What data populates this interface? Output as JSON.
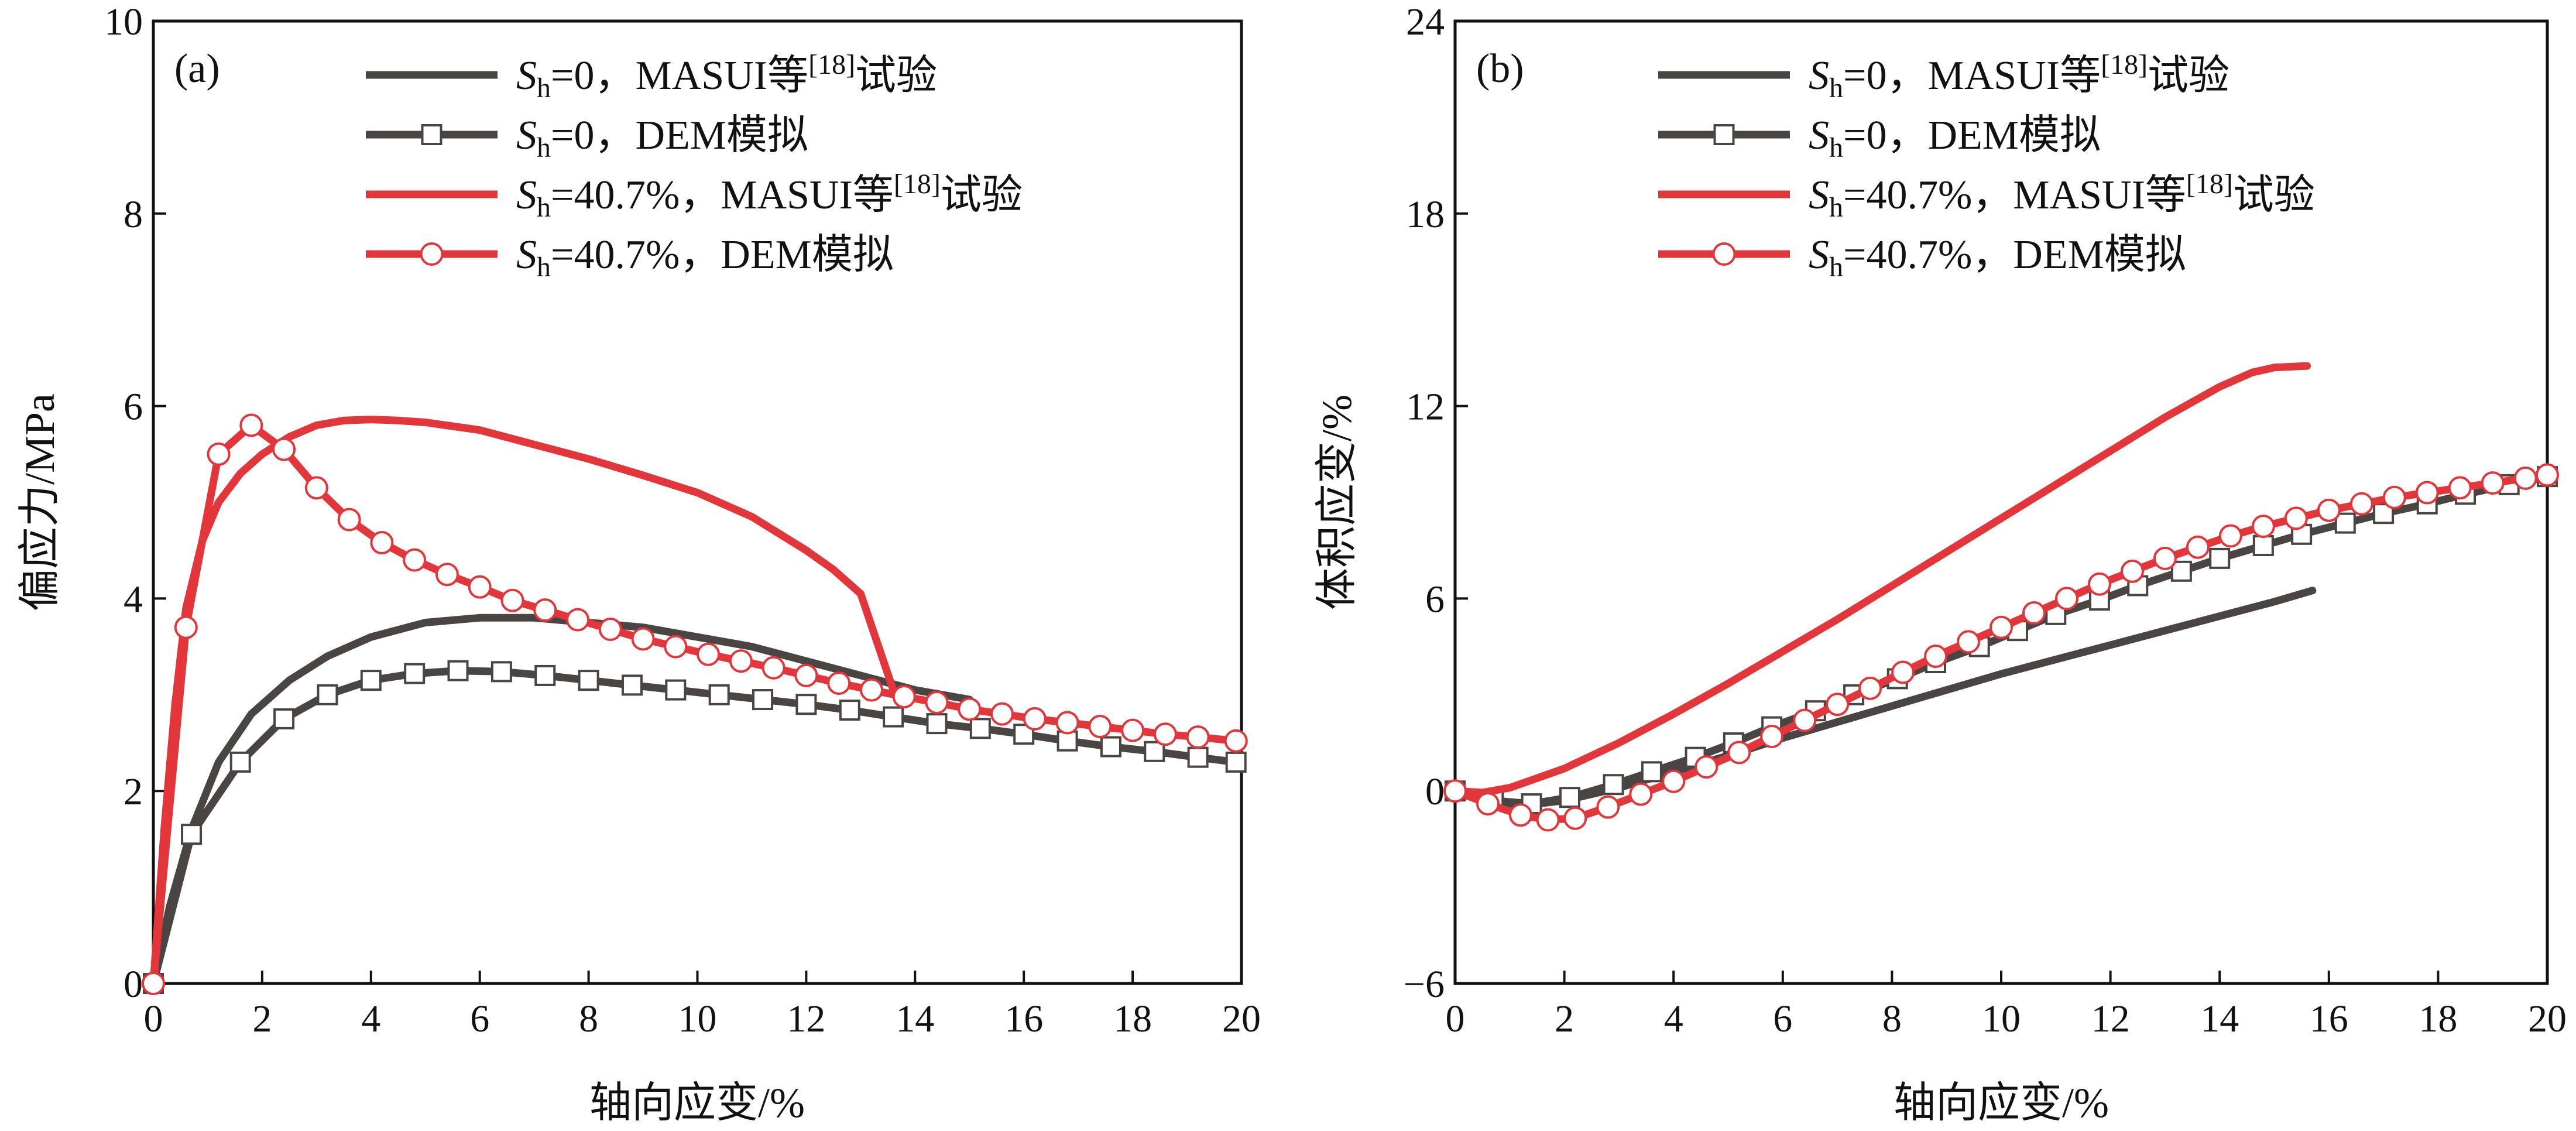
{
  "colors": {
    "black_series": "#4a4443",
    "red_series": "#e3363b",
    "axis": "#111111",
    "background": "#ffffff"
  },
  "chart_data": [
    {
      "type": "line",
      "panel_label": "(a)",
      "xlabel": "轴向应变/%",
      "ylabel": "偏应力/MPa",
      "xlim": [
        0,
        20
      ],
      "ylim": [
        0,
        10
      ],
      "xticks": [
        "0",
        "2",
        "4",
        "6",
        "8",
        "10",
        "12",
        "14",
        "16",
        "18",
        "20"
      ],
      "yticks": [
        "0",
        "2",
        "4",
        "6",
        "8",
        "10"
      ],
      "legend_position": "top-right",
      "series": [
        {
          "name": "Sh=0，MASUI等[18]试验",
          "label_prefix": "S",
          "label_sub": "h",
          "label_main": "=0，MASUI等",
          "label_sup": "[18]",
          "label_tail": "试验",
          "color": "#4a4443",
          "marker": "none",
          "points": [
            [
              0,
              0
            ],
            [
              0.3,
              0.8
            ],
            [
              0.7,
              1.6
            ],
            [
              1.2,
              2.3
            ],
            [
              1.8,
              2.8
            ],
            [
              2.5,
              3.15
            ],
            [
              3.2,
              3.4
            ],
            [
              4,
              3.6
            ],
            [
              5,
              3.75
            ],
            [
              6,
              3.8
            ],
            [
              7,
              3.8
            ],
            [
              8,
              3.75
            ],
            [
              9,
              3.7
            ],
            [
              10,
              3.6
            ],
            [
              11,
              3.5
            ],
            [
              12,
              3.35
            ],
            [
              13,
              3.2
            ],
            [
              14,
              3.05
            ],
            [
              15,
              2.95
            ]
          ]
        },
        {
          "name": "Sh=0，DEM模拟",
          "label_prefix": "S",
          "label_sub": "h",
          "label_main": "=0，DEM模拟",
          "label_sup": "",
          "label_tail": "",
          "color": "#4a4443",
          "marker": "square",
          "points": [
            [
              0,
              0
            ],
            [
              0.7,
              1.55
            ],
            [
              1.6,
              2.3
            ],
            [
              2.4,
              2.75
            ],
            [
              3.2,
              3.0
            ],
            [
              4,
              3.15
            ],
            [
              4.8,
              3.22
            ],
            [
              5.6,
              3.25
            ],
            [
              6.4,
              3.24
            ],
            [
              7.2,
              3.2
            ],
            [
              8,
              3.15
            ],
            [
              8.8,
              3.1
            ],
            [
              9.6,
              3.05
            ],
            [
              10.4,
              3.0
            ],
            [
              11.2,
              2.95
            ],
            [
              12,
              2.9
            ],
            [
              12.8,
              2.84
            ],
            [
              13.6,
              2.77
            ],
            [
              14.4,
              2.7
            ],
            [
              15.2,
              2.65
            ],
            [
              16,
              2.59
            ],
            [
              16.8,
              2.52
            ],
            [
              17.6,
              2.46
            ],
            [
              18.4,
              2.41
            ],
            [
              19.2,
              2.35
            ],
            [
              19.9,
              2.3
            ]
          ]
        },
        {
          "name": "Sh=40.7%，MASUI等[18]试验",
          "label_prefix": "S",
          "label_sub": "h",
          "label_main": "=40.7%，MASUI等",
          "label_sup": "[18]",
          "label_tail": "试验",
          "color": "#e3363b",
          "marker": "none",
          "points": [
            [
              0,
              0
            ],
            [
              0.2,
              1.6
            ],
            [
              0.4,
              2.9
            ],
            [
              0.6,
              3.9
            ],
            [
              0.9,
              4.6
            ],
            [
              1.2,
              5.0
            ],
            [
              1.6,
              5.3
            ],
            [
              2,
              5.5
            ],
            [
              2.5,
              5.68
            ],
            [
              3,
              5.8
            ],
            [
              3.5,
              5.85
            ],
            [
              4,
              5.86
            ],
            [
              4.5,
              5.85
            ],
            [
              5,
              5.83
            ],
            [
              6,
              5.75
            ],
            [
              7,
              5.6
            ],
            [
              8,
              5.45
            ],
            [
              9,
              5.28
            ],
            [
              10,
              5.1
            ],
            [
              11,
              4.85
            ],
            [
              12,
              4.5
            ],
            [
              12.5,
              4.3
            ],
            [
              13,
              4.05
            ],
            [
              13.3,
              3.55
            ],
            [
              13.6,
              3.05
            ]
          ]
        },
        {
          "name": "Sh=40.7%，DEM模拟",
          "label_prefix": "S",
          "label_sub": "h",
          "label_main": "=40.7%，DEM模拟",
          "label_sup": "",
          "label_tail": "",
          "color": "#e3363b",
          "marker": "circle",
          "points": [
            [
              0,
              0
            ],
            [
              0.6,
              3.7
            ],
            [
              1.2,
              5.5
            ],
            [
              1.8,
              5.8
            ],
            [
              2.4,
              5.55
            ],
            [
              3,
              5.15
            ],
            [
              3.6,
              4.82
            ],
            [
              4.2,
              4.58
            ],
            [
              4.8,
              4.4
            ],
            [
              5.4,
              4.25
            ],
            [
              6,
              4.12
            ],
            [
              6.6,
              3.98
            ],
            [
              7.2,
              3.88
            ],
            [
              7.8,
              3.78
            ],
            [
              8.4,
              3.68
            ],
            [
              9,
              3.58
            ],
            [
              9.6,
              3.5
            ],
            [
              10.2,
              3.42
            ],
            [
              10.8,
              3.35
            ],
            [
              11.4,
              3.28
            ],
            [
              12,
              3.2
            ],
            [
              12.6,
              3.12
            ],
            [
              13.2,
              3.05
            ],
            [
              13.8,
              2.98
            ],
            [
              14.4,
              2.92
            ],
            [
              15,
              2.85
            ],
            [
              15.6,
              2.8
            ],
            [
              16.2,
              2.75
            ],
            [
              16.8,
              2.71
            ],
            [
              17.4,
              2.67
            ],
            [
              18,
              2.63
            ],
            [
              18.6,
              2.59
            ],
            [
              19.2,
              2.56
            ],
            [
              19.9,
              2.52
            ]
          ]
        }
      ]
    },
    {
      "type": "line",
      "panel_label": "(b)",
      "xlabel": "轴向应变/%",
      "ylabel": "体积应变/%",
      "xlim": [
        0,
        20
      ],
      "ylim": [
        -6,
        24
      ],
      "xticks": [
        "0",
        "2",
        "4",
        "6",
        "8",
        "10",
        "12",
        "14",
        "16",
        "18",
        "20"
      ],
      "yticks": [
        "−6",
        "0",
        "6",
        "12",
        "18",
        "24"
      ],
      "legend_position": "top-right",
      "series": [
        {
          "name": "Sh=0，MASUI等[18]试验",
          "label_prefix": "S",
          "label_sub": "h",
          "label_main": "=0，MASUI等",
          "label_sup": "[18]",
          "label_tail": "试验",
          "color": "#4a4443",
          "marker": "none",
          "points": [
            [
              0,
              0
            ],
            [
              0.5,
              -0.25
            ],
            [
              1,
              -0.4
            ],
            [
              1.5,
              -0.4
            ],
            [
              2,
              -0.3
            ],
            [
              3,
              0.1
            ],
            [
              4,
              0.6
            ],
            [
              5,
              1.1
            ],
            [
              6,
              1.65
            ],
            [
              7,
              2.15
            ],
            [
              8,
              2.65
            ],
            [
              9,
              3.15
            ],
            [
              10,
              3.65
            ],
            [
              11,
              4.1
            ],
            [
              12,
              4.55
            ],
            [
              13,
              5.0
            ],
            [
              14,
              5.45
            ],
            [
              15,
              5.9
            ],
            [
              15.7,
              6.25
            ]
          ]
        },
        {
          "name": "Sh=0，DEM模拟",
          "label_prefix": "S",
          "label_sub": "h",
          "label_main": "=0，DEM模拟",
          "label_sup": "",
          "label_tail": "",
          "color": "#4a4443",
          "marker": "square",
          "points": [
            [
              0,
              0
            ],
            [
              0.7,
              -0.3
            ],
            [
              1.4,
              -0.4
            ],
            [
              2.1,
              -0.2
            ],
            [
              2.9,
              0.2
            ],
            [
              3.6,
              0.6
            ],
            [
              4.4,
              1.05
            ],
            [
              5.1,
              1.5
            ],
            [
              5.8,
              2.0
            ],
            [
              6.6,
              2.5
            ],
            [
              7.3,
              3.0
            ],
            [
              8.1,
              3.5
            ],
            [
              8.8,
              4.0
            ],
            [
              9.6,
              4.5
            ],
            [
              10.3,
              5.0
            ],
            [
              11.0,
              5.5
            ],
            [
              11.8,
              5.95
            ],
            [
              12.5,
              6.4
            ],
            [
              13.3,
              6.85
            ],
            [
              14.0,
              7.25
            ],
            [
              14.8,
              7.65
            ],
            [
              15.5,
              8.0
            ],
            [
              16.3,
              8.35
            ],
            [
              17.0,
              8.65
            ],
            [
              17.8,
              8.95
            ],
            [
              18.5,
              9.25
            ],
            [
              19.3,
              9.55
            ],
            [
              20,
              9.8
            ]
          ]
        },
        {
          "name": "Sh=40.7%，MASUI等[18]试验",
          "label_prefix": "S",
          "label_sub": "h",
          "label_main": "=40.7%，MASUI等",
          "label_sup": "[18]",
          "label_tail": "试验",
          "color": "#e3363b",
          "marker": "none",
          "points": [
            [
              0,
              0
            ],
            [
              0.5,
              -0.05
            ],
            [
              1,
              0.1
            ],
            [
              2,
              0.7
            ],
            [
              3,
              1.5
            ],
            [
              4,
              2.4
            ],
            [
              5,
              3.35
            ],
            [
              6,
              4.35
            ],
            [
              7,
              5.35
            ],
            [
              8,
              6.4
            ],
            [
              9,
              7.45
            ],
            [
              10,
              8.5
            ],
            [
              11,
              9.55
            ],
            [
              12,
              10.6
            ],
            [
              13,
              11.65
            ],
            [
              14,
              12.6
            ],
            [
              14.6,
              13.05
            ],
            [
              15,
              13.2
            ],
            [
              15.6,
              13.25
            ]
          ]
        },
        {
          "name": "Sh=40.7%，DEM模拟",
          "label_prefix": "S",
          "label_sub": "h",
          "label_main": "=40.7%，DEM模拟",
          "label_sup": "",
          "label_tail": "",
          "color": "#e3363b",
          "marker": "circle",
          "points": [
            [
              0,
              0
            ],
            [
              0.6,
              -0.4
            ],
            [
              1.2,
              -0.75
            ],
            [
              1.7,
              -0.9
            ],
            [
              2.2,
              -0.85
            ],
            [
              2.8,
              -0.5
            ],
            [
              3.4,
              -0.1
            ],
            [
              4,
              0.3
            ],
            [
              4.6,
              0.75
            ],
            [
              5.2,
              1.2
            ],
            [
              5.8,
              1.7
            ],
            [
              6.4,
              2.2
            ],
            [
              7,
              2.7
            ],
            [
              7.6,
              3.2
            ],
            [
              8.2,
              3.7
            ],
            [
              8.8,
              4.2
            ],
            [
              9.4,
              4.65
            ],
            [
              10,
              5.1
            ],
            [
              10.6,
              5.55
            ],
            [
              11.2,
              6.0
            ],
            [
              11.8,
              6.45
            ],
            [
              12.4,
              6.85
            ],
            [
              13,
              7.25
            ],
            [
              13.6,
              7.6
            ],
            [
              14.2,
              7.95
            ],
            [
              14.8,
              8.25
            ],
            [
              15.4,
              8.5
            ],
            [
              16,
              8.75
            ],
            [
              16.6,
              8.95
            ],
            [
              17.2,
              9.15
            ],
            [
              17.8,
              9.3
            ],
            [
              18.4,
              9.45
            ],
            [
              19,
              9.6
            ],
            [
              19.6,
              9.75
            ],
            [
              20,
              9.85
            ]
          ]
        }
      ]
    }
  ]
}
